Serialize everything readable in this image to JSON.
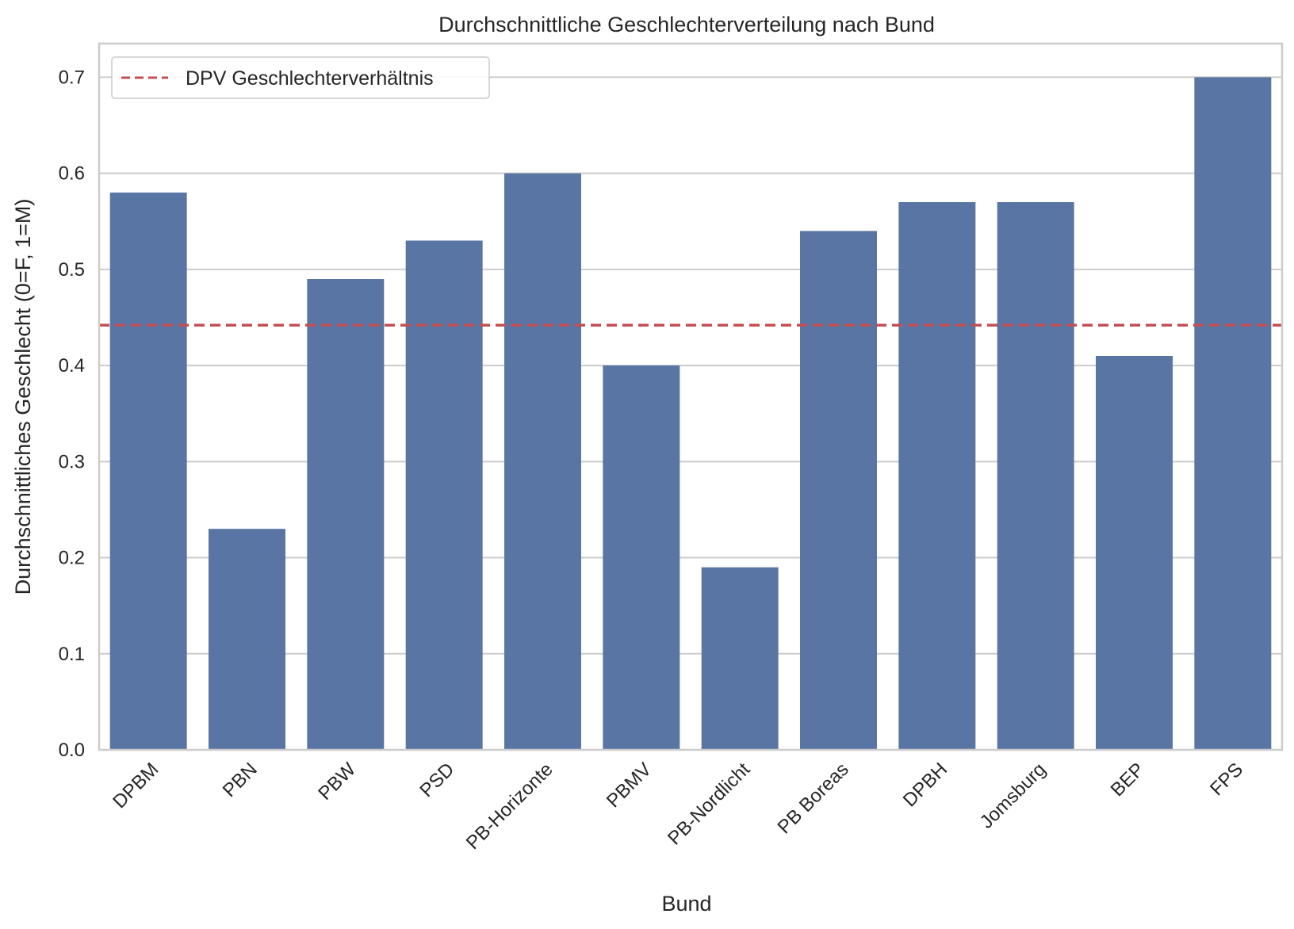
{
  "chart_data": {
    "type": "bar",
    "title": "Durchschnittliche Geschlechterverteilung nach Bund",
    "xlabel": "Bund",
    "ylabel": "Durchschnittliches Geschlecht (0=F, 1=M)",
    "categories": [
      "DPBM",
      "PBN",
      "PBW",
      "PSD",
      "PB-Horizonte",
      "PBMV",
      "PB-Nordlicht",
      "PB Boreas",
      "DPBH",
      "Jomsburg",
      "BEP",
      "FPS"
    ],
    "values": [
      0.58,
      0.23,
      0.49,
      0.53,
      0.6,
      0.4,
      0.19,
      0.54,
      0.57,
      0.57,
      0.41,
      0.7
    ],
    "ylim": [
      0,
      0.735
    ],
    "yticks": [
      "0.0",
      "0.1",
      "0.2",
      "0.3",
      "0.4",
      "0.5",
      "0.6",
      "0.7"
    ],
    "grid": true,
    "bar_color": "#5975a4",
    "reference_line": {
      "label": "DPV Geschlechterverhältnis",
      "value": 0.442,
      "color": "#c44e52",
      "style": "dashed"
    },
    "legend_position": "top-left"
  }
}
